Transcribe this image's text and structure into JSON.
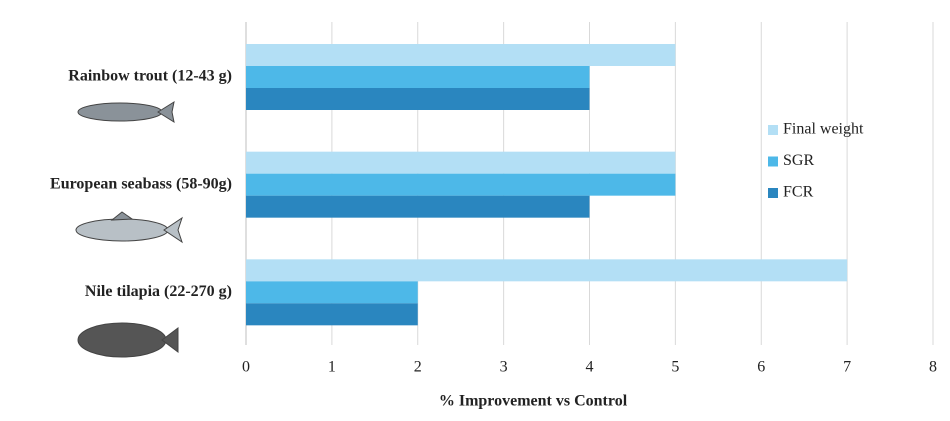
{
  "chart_data": {
    "type": "hbar",
    "categories": [
      "Rainbow trout (12-43 g)",
      "European seabass (58-90g)",
      "Nile tilapia (22-270 g)"
    ],
    "series": [
      {
        "name": "Final weight",
        "color": "#b3dff5",
        "values": [
          5,
          5,
          7
        ]
      },
      {
        "name": "SGR",
        "color": "#4db8e8",
        "values": [
          4,
          5,
          2
        ]
      },
      {
        "name": "FCR",
        "color": "#2a86bf",
        "values": [
          4,
          4,
          2
        ]
      }
    ],
    "xlabel": "% Improvement vs Control",
    "xlim": [
      0,
      8
    ],
    "xticks": [
      0,
      1,
      2,
      3,
      4,
      5,
      6,
      7,
      8
    ],
    "grid": true,
    "legend": "right"
  }
}
